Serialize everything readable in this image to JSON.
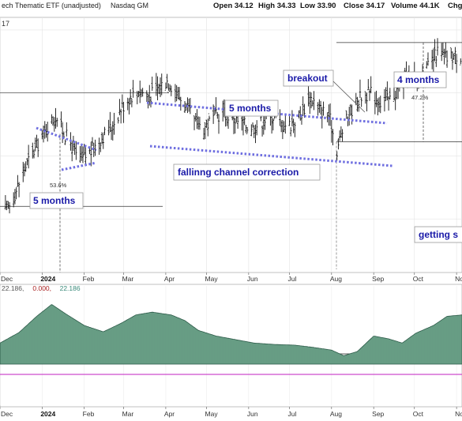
{
  "header": {
    "title": "ech Thematic ETF (unadjusted)",
    "exchange": "Nasdaq GM",
    "ohlc": [
      {
        "label": "Open",
        "value": "34.12"
      },
      {
        "label": "High",
        "value": "34.33"
      },
      {
        "label": "Low",
        "value": "33.90"
      },
      {
        "label": "Close",
        "value": "34.17"
      },
      {
        "label": "Volume",
        "value": "44.1K"
      },
      {
        "label": "Chg",
        "value": ""
      }
    ],
    "last_value": "17"
  },
  "indicator": {
    "values": [
      {
        "text": "22.186,",
        "color": "#555555"
      },
      {
        "text": "0.000,",
        "color": "#aa2222"
      },
      {
        "text": "22.186",
        "color": "#3a8a7a"
      }
    ],
    "fill_color": "#6fa58c",
    "line_color": "#c21fc2"
  },
  "annotations": {
    "breakout": "breakout",
    "four_months": "4 months",
    "five_months_top": "5 months",
    "five_months_left": "5 months",
    "falling_channel": "fallinng channel correction",
    "getting": "getting s",
    "pct_left": "53.6%",
    "pct_right": "47.2%"
  },
  "chart_data": [
    {
      "type": "candlestick",
      "title": "ech Thematic ETF (unadjusted)",
      "x_tick_labels": [
        "Dec",
        "2024",
        "Feb",
        "Mar",
        "Apr",
        "May",
        "Jun",
        "Jul",
        "Aug",
        "Sep",
        "Oct",
        "No"
      ],
      "x_start": "2023-12-01",
      "x_end": "2024-11-05",
      "price_series": [
        [
          "2023-12-05",
          31.2
        ],
        [
          "2023-12-12",
          31.8
        ],
        [
          "2023-12-19",
          32.6
        ],
        [
          "2023-12-28",
          33.3
        ],
        [
          "2024-01-05",
          33.9
        ],
        [
          "2024-01-11",
          34.3
        ],
        [
          "2024-01-16",
          33.8
        ],
        [
          "2024-01-22",
          33.4
        ],
        [
          "2024-01-26",
          33.0
        ],
        [
          "2024-01-31",
          32.9
        ],
        [
          "2024-02-07",
          33.2
        ],
        [
          "2024-02-14",
          33.6
        ],
        [
          "2024-02-21",
          33.9
        ],
        [
          "2024-02-28",
          34.5
        ],
        [
          "2024-03-06",
          34.9
        ],
        [
          "2024-03-13",
          35.1
        ],
        [
          "2024-03-20",
          34.9
        ],
        [
          "2024-03-27",
          35.2
        ],
        [
          "2024-04-02",
          35.4
        ],
        [
          "2024-04-08",
          35.1
        ],
        [
          "2024-04-15",
          34.6
        ],
        [
          "2024-04-22",
          34.1
        ],
        [
          "2024-04-29",
          33.9
        ],
        [
          "2024-05-06",
          34.2
        ],
        [
          "2024-05-13",
          34.4
        ],
        [
          "2024-05-20",
          34.2
        ],
        [
          "2024-05-28",
          34.0
        ],
        [
          "2024-06-04",
          33.9
        ],
        [
          "2024-06-11",
          34.1
        ],
        [
          "2024-06-18",
          34.3
        ],
        [
          "2024-06-25",
          34.0
        ],
        [
          "2024-07-02",
          34.0
        ],
        [
          "2024-07-09",
          34.3
        ],
        [
          "2024-07-16",
          34.9
        ],
        [
          "2024-07-23",
          34.5
        ],
        [
          "2024-07-30",
          34.3
        ],
        [
          "2024-08-05",
          33.2
        ],
        [
          "2024-08-09",
          33.8
        ],
        [
          "2024-08-16",
          34.5
        ],
        [
          "2024-08-23",
          34.9
        ],
        [
          "2024-08-30",
          35.0
        ],
        [
          "2024-09-06",
          34.7
        ],
        [
          "2024-09-13",
          34.8
        ],
        [
          "2024-09-20",
          35.2
        ],
        [
          "2024-09-27",
          35.5
        ],
        [
          "2024-10-04",
          35.4
        ],
        [
          "2024-10-11",
          35.8
        ],
        [
          "2024-10-18",
          36.3
        ],
        [
          "2024-10-25",
          36.1
        ],
        [
          "2024-11-01",
          36.2
        ]
      ],
      "annotations": [
        "breakout",
        "4 months",
        "5 months",
        "5 months",
        "fallinng channel correction",
        "getting s",
        "53.6%",
        "47.2%"
      ]
    },
    {
      "type": "area",
      "series": [
        {
          "name": "",
          "values": [
            22.186
          ]
        }
      ],
      "indicator_series": [
        [
          "2023-12-01",
          0.3
        ],
        [
          "2023-12-15",
          0.45
        ],
        [
          "2023-12-28",
          0.68
        ],
        [
          "2024-01-08",
          0.85
        ],
        [
          "2024-01-18",
          0.72
        ],
        [
          "2024-02-01",
          0.55
        ],
        [
          "2024-02-15",
          0.46
        ],
        [
          "2024-02-28",
          0.58
        ],
        [
          "2024-03-10",
          0.7
        ],
        [
          "2024-03-22",
          0.74
        ],
        [
          "2024-04-05",
          0.7
        ],
        [
          "2024-04-15",
          0.62
        ],
        [
          "2024-04-25",
          0.48
        ],
        [
          "2024-05-08",
          0.4
        ],
        [
          "2024-05-22",
          0.35
        ],
        [
          "2024-06-05",
          0.3
        ],
        [
          "2024-06-20",
          0.28
        ],
        [
          "2024-07-05",
          0.27
        ],
        [
          "2024-07-18",
          0.24
        ],
        [
          "2024-08-01",
          0.2
        ],
        [
          "2024-08-10",
          0.12
        ],
        [
          "2024-08-20",
          0.18
        ],
        [
          "2024-09-01",
          0.4
        ],
        [
          "2024-09-12",
          0.36
        ],
        [
          "2024-09-22",
          0.3
        ],
        [
          "2024-10-02",
          0.44
        ],
        [
          "2024-10-15",
          0.55
        ],
        [
          "2024-10-25",
          0.68
        ],
        [
          "2024-11-05",
          0.7
        ]
      ]
    }
  ]
}
